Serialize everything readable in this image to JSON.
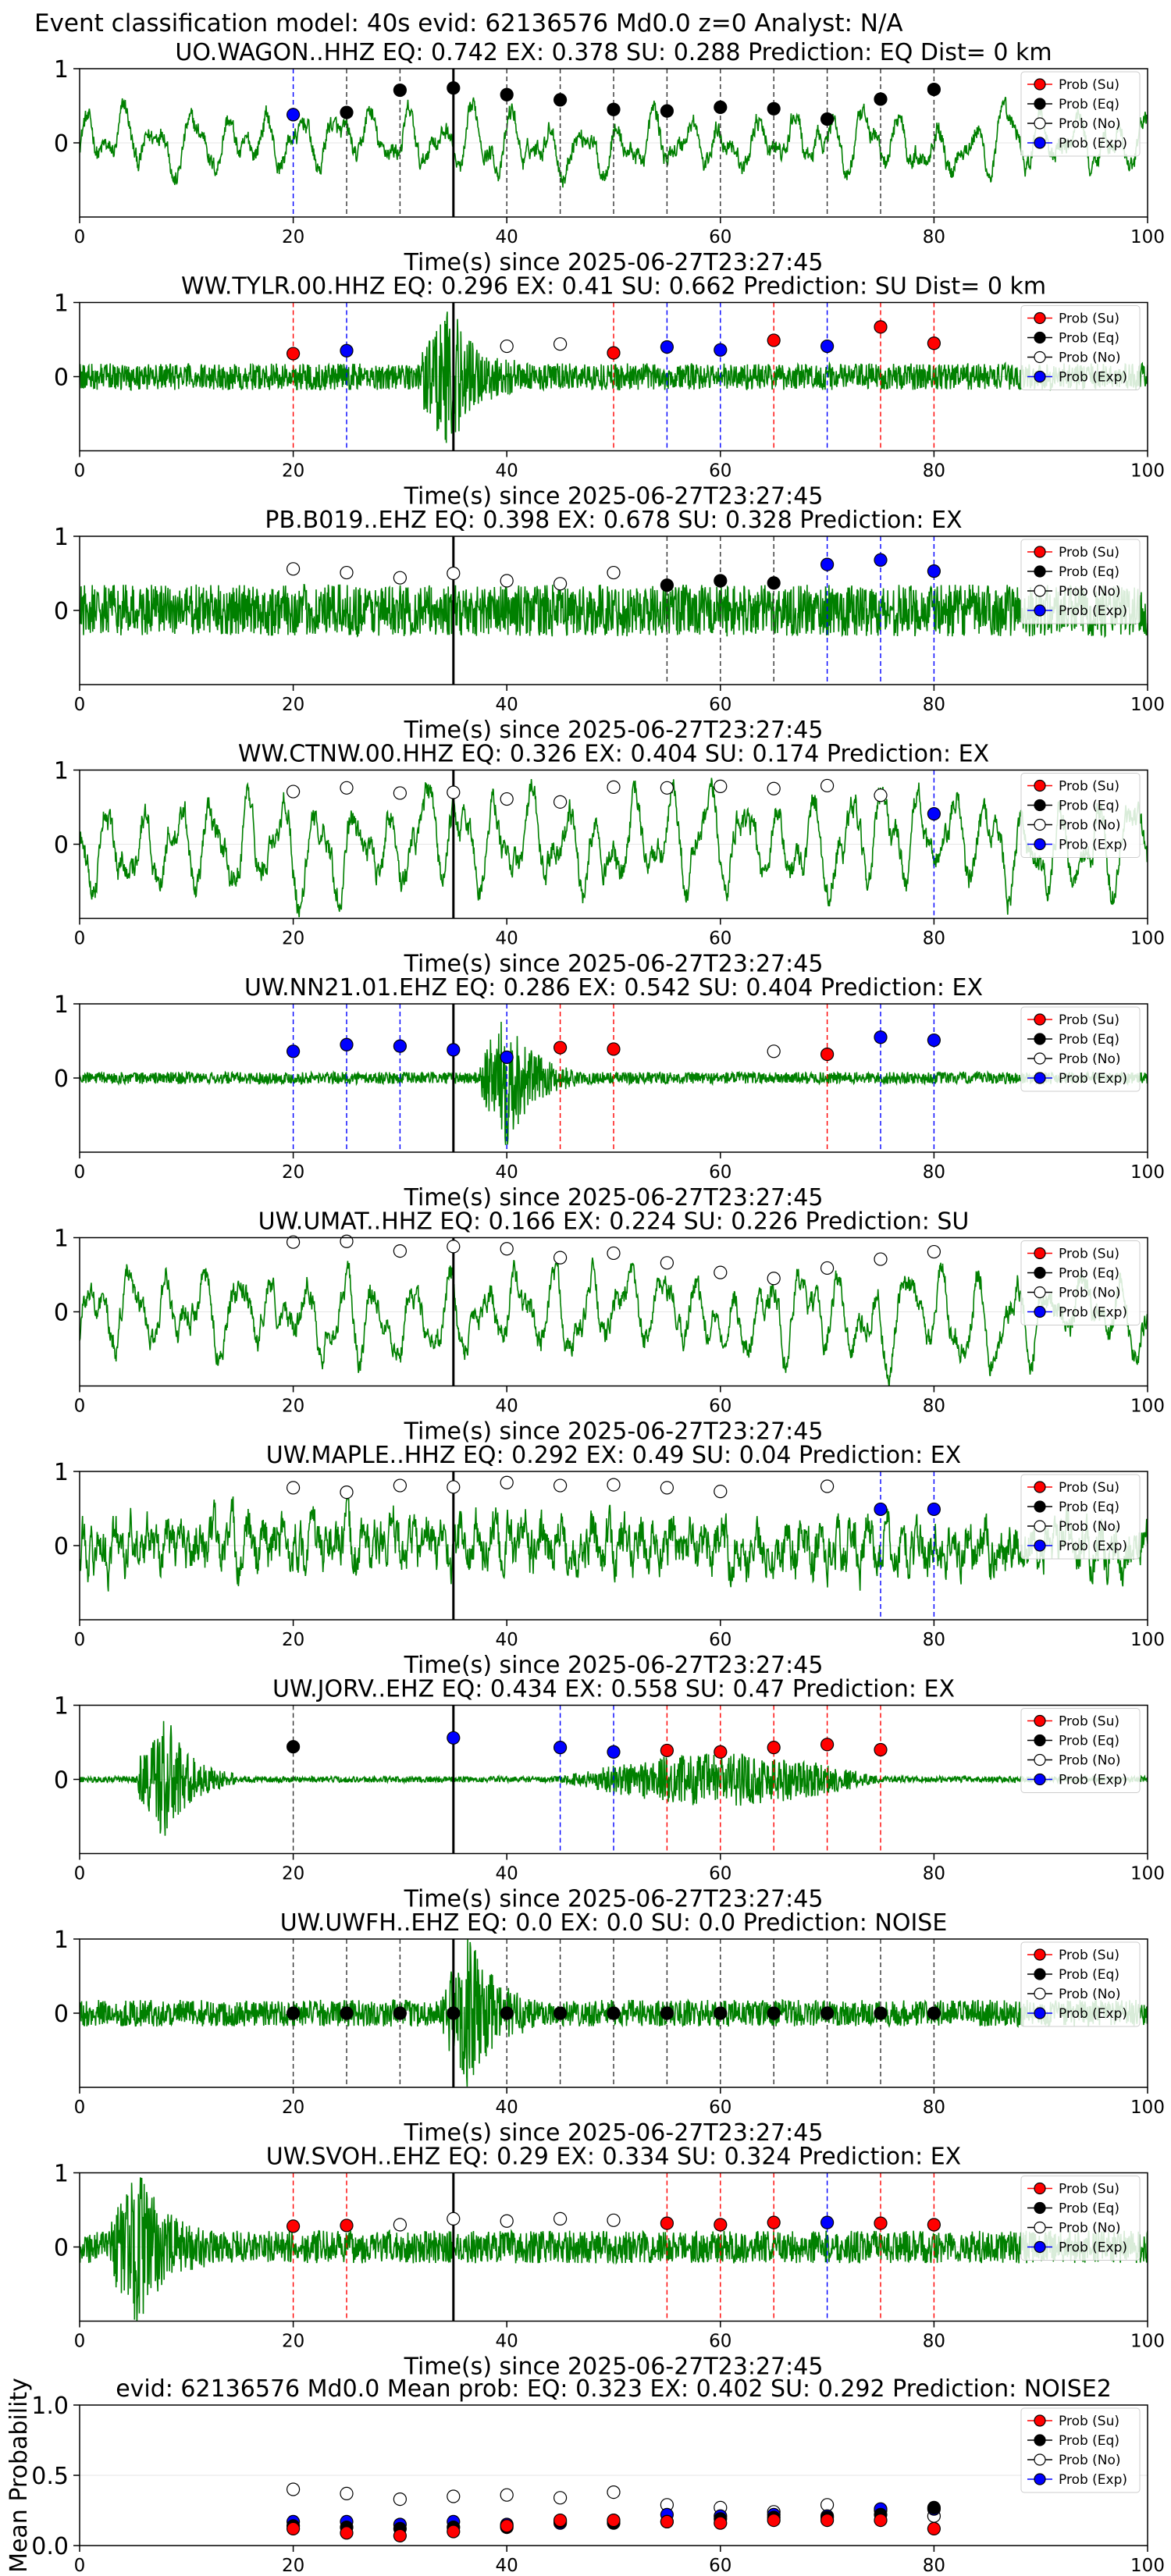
{
  "figure": {
    "suptitle": "Event classification model: 40s evid: 62136576 Md0.0 z=0 Analyst: N/A",
    "xlabel": "Time(s) since 2025-06-27T23:27:45",
    "legend": [
      "Prob (Su)",
      "Prob (Eq)",
      "Prob (No)",
      "Prob (Exp)"
    ],
    "colors": {
      "su": "#ff0000",
      "eq": "#000000",
      "no": "#ffffff",
      "exp": "#0000ff",
      "trace": "#008000"
    }
  },
  "chart_data": [
    {
      "type": "line",
      "title": "UO.WAGON..HHZ   EQ: 0.742  EX: 0.378  SU: 0.288   Prediction: EQ    Dist= 0 km",
      "xlim": [
        0,
        100
      ],
      "ylim": [
        -1,
        1
      ],
      "yticks": [
        0,
        1
      ],
      "xticks": [
        0,
        20,
        40,
        60,
        80,
        100
      ],
      "pick": 35,
      "trace_style": "lowfreq",
      "trace_amp": 0.35,
      "burst_at": null,
      "markers": [
        [
          20,
          0.38,
          "exp"
        ],
        [
          25,
          0.41,
          "eq"
        ],
        [
          30,
          0.71,
          "eq"
        ],
        [
          35,
          0.74,
          "eq"
        ],
        [
          40,
          0.65,
          "eq"
        ],
        [
          45,
          0.58,
          "eq"
        ],
        [
          50,
          0.45,
          "eq"
        ],
        [
          55,
          0.43,
          "eq"
        ],
        [
          60,
          0.48,
          "eq"
        ],
        [
          65,
          0.46,
          "eq"
        ],
        [
          70,
          0.32,
          "eq"
        ],
        [
          75,
          0.59,
          "eq"
        ],
        [
          80,
          0.72,
          "eq"
        ]
      ]
    },
    {
      "type": "line",
      "title": "WW.TYLR.00.HHZ   EQ: 0.296  EX: 0.41  SU: 0.662   Prediction: SU    Dist= 0 km",
      "xlim": [
        0,
        100
      ],
      "ylim": [
        -1,
        1
      ],
      "yticks": [
        0,
        1
      ],
      "xticks": [
        0,
        20,
        40,
        60,
        80,
        100
      ],
      "pick": 35,
      "trace_style": "noise",
      "trace_amp": 0.18,
      "burst_at": 33,
      "markers": [
        [
          20,
          0.31,
          "su"
        ],
        [
          25,
          0.35,
          "exp"
        ],
        [
          40,
          0.41,
          "no"
        ],
        [
          45,
          0.44,
          "no"
        ],
        [
          50,
          0.32,
          "su"
        ],
        [
          55,
          0.4,
          "exp"
        ],
        [
          60,
          0.36,
          "exp"
        ],
        [
          65,
          0.49,
          "su"
        ],
        [
          70,
          0.41,
          "exp"
        ],
        [
          75,
          0.67,
          "su"
        ],
        [
          80,
          0.45,
          "su"
        ]
      ]
    },
    {
      "type": "line",
      "title": "PB.B019..EHZ   EQ: 0.398  EX: 0.678  SU: 0.328   Prediction: EX",
      "xlim": [
        0,
        100
      ],
      "ylim": [
        -1,
        1
      ],
      "yticks": [
        0,
        1
      ],
      "xticks": [
        0,
        20,
        40,
        60,
        80,
        100
      ],
      "pick": 35,
      "trace_style": "noise",
      "trace_amp": 0.35,
      "burst_at": null,
      "markers": [
        [
          20,
          0.56,
          "no"
        ],
        [
          25,
          0.51,
          "no"
        ],
        [
          30,
          0.44,
          "no"
        ],
        [
          35,
          0.5,
          "no"
        ],
        [
          40,
          0.4,
          "no"
        ],
        [
          45,
          0.36,
          "no"
        ],
        [
          50,
          0.51,
          "no"
        ],
        [
          55,
          0.34,
          "eq"
        ],
        [
          60,
          0.4,
          "eq"
        ],
        [
          65,
          0.37,
          "eq"
        ],
        [
          70,
          0.62,
          "exp"
        ],
        [
          75,
          0.68,
          "exp"
        ],
        [
          80,
          0.53,
          "exp"
        ]
      ]
    },
    {
      "type": "line",
      "title": "WW.CTNW.00.HHZ   EQ: 0.326  EX: 0.404  SU: 0.174   Prediction: EX",
      "xlim": [
        0,
        100
      ],
      "ylim": [
        -1,
        1
      ],
      "yticks": [
        0,
        1
      ],
      "xticks": [
        0,
        20,
        40,
        60,
        80,
        100
      ],
      "pick": 35,
      "trace_style": "lowfreq",
      "trace_amp": 0.55,
      "burst_at": null,
      "markers": [
        [
          20,
          0.71,
          "no"
        ],
        [
          25,
          0.76,
          "no"
        ],
        [
          30,
          0.69,
          "no"
        ],
        [
          35,
          0.7,
          "no"
        ],
        [
          40,
          0.61,
          "no"
        ],
        [
          45,
          0.57,
          "no"
        ],
        [
          50,
          0.77,
          "no"
        ],
        [
          55,
          0.76,
          "no"
        ],
        [
          60,
          0.78,
          "no"
        ],
        [
          65,
          0.75,
          "no"
        ],
        [
          70,
          0.79,
          "no"
        ],
        [
          75,
          0.66,
          "no"
        ],
        [
          80,
          0.41,
          "exp"
        ]
      ]
    },
    {
      "type": "line",
      "title": "UW.NN21.01.EHZ   EQ: 0.286  EX: 0.542  SU: 0.404   Prediction: EX",
      "xlim": [
        0,
        100
      ],
      "ylim": [
        -1,
        1
      ],
      "yticks": [
        0,
        1
      ],
      "xticks": [
        0,
        20,
        40,
        60,
        80,
        100
      ],
      "pick": 35,
      "trace_style": "noise",
      "trace_amp": 0.08,
      "burst_at": 38.5,
      "markers": [
        [
          20,
          0.36,
          "exp"
        ],
        [
          25,
          0.45,
          "exp"
        ],
        [
          30,
          0.43,
          "exp"
        ],
        [
          35,
          0.38,
          "exp"
        ],
        [
          40,
          0.28,
          "exp"
        ],
        [
          45,
          0.41,
          "su"
        ],
        [
          50,
          0.39,
          "su"
        ],
        [
          65,
          0.36,
          "no"
        ],
        [
          70,
          0.32,
          "su"
        ],
        [
          75,
          0.55,
          "exp"
        ],
        [
          80,
          0.51,
          "exp"
        ]
      ]
    },
    {
      "type": "line",
      "title": "UW.UMAT..HHZ   EQ: 0.166  EX: 0.224  SU: 0.226   Prediction: SU",
      "xlim": [
        0,
        100
      ],
      "ylim": [
        -1,
        1
      ],
      "yticks": [
        0,
        1
      ],
      "xticks": [
        0,
        20,
        40,
        60,
        80,
        100
      ],
      "pick": 35,
      "trace_style": "lowfreq",
      "trace_amp": 0.5,
      "burst_at": null,
      "markers": [
        [
          20,
          0.94,
          "no"
        ],
        [
          25,
          0.95,
          "no"
        ],
        [
          30,
          0.82,
          "no"
        ],
        [
          35,
          0.88,
          "no"
        ],
        [
          40,
          0.85,
          "no"
        ],
        [
          45,
          0.73,
          "no"
        ],
        [
          50,
          0.79,
          "no"
        ],
        [
          55,
          0.66,
          "no"
        ],
        [
          60,
          0.53,
          "no"
        ],
        [
          65,
          0.45,
          "no"
        ],
        [
          70,
          0.59,
          "no"
        ],
        [
          75,
          0.71,
          "no"
        ],
        [
          80,
          0.81,
          "no"
        ]
      ]
    },
    {
      "type": "line",
      "title": "UW.MAPLE..HHZ   EQ: 0.292  EX: 0.49  SU: 0.04   Prediction: EX",
      "xlim": [
        0,
        100
      ],
      "ylim": [
        -1,
        1
      ],
      "yticks": [
        0,
        1
      ],
      "xticks": [
        0,
        20,
        40,
        60,
        80,
        100
      ],
      "pick": 35,
      "trace_style": "mixed",
      "trace_amp": 0.5,
      "burst_at": null,
      "markers": [
        [
          20,
          0.78,
          "no"
        ],
        [
          25,
          0.72,
          "no"
        ],
        [
          30,
          0.81,
          "no"
        ],
        [
          35,
          0.79,
          "no"
        ],
        [
          40,
          0.85,
          "no"
        ],
        [
          45,
          0.81,
          "no"
        ],
        [
          50,
          0.82,
          "no"
        ],
        [
          55,
          0.78,
          "no"
        ],
        [
          60,
          0.73,
          "no"
        ],
        [
          70,
          0.8,
          "no"
        ],
        [
          75,
          0.49,
          "exp"
        ],
        [
          80,
          0.49,
          "exp"
        ]
      ]
    },
    {
      "type": "line",
      "title": "UW.JORV..EHZ   EQ: 0.434  EX: 0.558  SU: 0.47   Prediction: EX",
      "xlim": [
        0,
        100
      ],
      "ylim": [
        -1,
        1
      ],
      "yticks": [
        0,
        1
      ],
      "xticks": [
        0,
        20,
        40,
        60,
        80,
        100
      ],
      "pick": 35,
      "trace_style": "quiet",
      "trace_amp": 0.04,
      "burst_at": 6.5,
      "markers": [
        [
          20,
          0.44,
          "eq"
        ],
        [
          35,
          0.56,
          "exp"
        ],
        [
          45,
          0.43,
          "exp"
        ],
        [
          50,
          0.37,
          "exp"
        ],
        [
          55,
          0.39,
          "su"
        ],
        [
          60,
          0.37,
          "su"
        ],
        [
          65,
          0.43,
          "su"
        ],
        [
          70,
          0.47,
          "su"
        ],
        [
          75,
          0.4,
          "su"
        ]
      ]
    },
    {
      "type": "line",
      "title": "UW.UWFH..EHZ   EQ: 0.0  EX: 0.0  SU: 0.0   Prediction: NOISE",
      "xlim": [
        0,
        100
      ],
      "ylim": [
        -1,
        1
      ],
      "yticks": [
        0,
        1
      ],
      "xticks": [
        0,
        20,
        40,
        60,
        80,
        100
      ],
      "pick": 35,
      "trace_style": "noise",
      "trace_amp": 0.18,
      "burst_at": 35,
      "markers": [
        [
          20,
          0.0,
          "eq"
        ],
        [
          25,
          0.0,
          "eq"
        ],
        [
          30,
          0.0,
          "eq"
        ],
        [
          35,
          0.0,
          "eq"
        ],
        [
          40,
          0.0,
          "eq"
        ],
        [
          45,
          0.0,
          "eq"
        ],
        [
          50,
          0.0,
          "eq"
        ],
        [
          55,
          0.0,
          "eq"
        ],
        [
          60,
          0.0,
          "eq"
        ],
        [
          65,
          0.0,
          "eq"
        ],
        [
          70,
          0.0,
          "eq"
        ],
        [
          75,
          0.0,
          "eq"
        ],
        [
          80,
          0.0,
          "eq"
        ]
      ]
    },
    {
      "type": "line",
      "title": "UW.SVOH..EHZ   EQ: 0.29  EX: 0.334  SU: 0.324   Prediction: EX",
      "xlim": [
        0,
        100
      ],
      "ylim": [
        -1,
        1
      ],
      "yticks": [
        0,
        1
      ],
      "xticks": [
        0,
        20,
        40,
        60,
        80,
        100
      ],
      "pick": 35,
      "trace_style": "noise",
      "trace_amp": 0.22,
      "burst_at": 4,
      "markers": [
        [
          20,
          0.28,
          "su"
        ],
        [
          25,
          0.29,
          "su"
        ],
        [
          30,
          0.3,
          "no"
        ],
        [
          35,
          0.38,
          "no"
        ],
        [
          40,
          0.35,
          "no"
        ],
        [
          45,
          0.38,
          "no"
        ],
        [
          50,
          0.36,
          "no"
        ],
        [
          55,
          0.32,
          "su"
        ],
        [
          60,
          0.3,
          "su"
        ],
        [
          65,
          0.33,
          "su"
        ],
        [
          70,
          0.33,
          "exp"
        ],
        [
          75,
          0.32,
          "su"
        ],
        [
          80,
          0.3,
          "su"
        ]
      ]
    },
    {
      "type": "scatter",
      "title": "evid: 62136576  Md0.0   Mean prob:   EQ: 0.323  EX: 0.402  SU: 0.292   Prediction: NOISE2",
      "ylabel": "Mean Probability",
      "xlim": [
        0,
        100
      ],
      "ylim": [
        0,
        1
      ],
      "yticks": [
        0.0,
        0.5,
        1.0
      ],
      "xticks": [
        0,
        20,
        40,
        60,
        80,
        100
      ],
      "series": [
        {
          "name": "Prob (No)",
          "key": "no",
          "x": [
            20,
            25,
            30,
            35,
            40,
            45,
            50,
            55,
            60,
            65,
            70,
            75,
            80
          ],
          "values": [
            0.4,
            0.37,
            0.33,
            0.35,
            0.36,
            0.34,
            0.38,
            0.29,
            0.27,
            0.24,
            0.29,
            0.25,
            0.21
          ]
        },
        {
          "name": "Prob (Exp)",
          "key": "exp",
          "x": [
            20,
            25,
            30,
            35,
            40,
            45,
            50,
            55,
            60,
            65,
            70,
            75,
            80
          ],
          "values": [
            0.17,
            0.17,
            0.15,
            0.17,
            0.15,
            0.16,
            0.17,
            0.22,
            0.21,
            0.22,
            0.21,
            0.26,
            0.26
          ]
        },
        {
          "name": "Prob (Eq)",
          "key": "eq",
          "x": [
            20,
            25,
            30,
            35,
            40,
            45,
            50,
            55,
            60,
            65,
            70,
            75,
            80
          ],
          "values": [
            0.14,
            0.13,
            0.12,
            0.13,
            0.13,
            0.17,
            0.16,
            0.17,
            0.19,
            0.2,
            0.2,
            0.22,
            0.27
          ]
        },
        {
          "name": "Prob (Su)",
          "key": "su",
          "x": [
            20,
            25,
            30,
            35,
            40,
            45,
            50,
            55,
            60,
            65,
            70,
            75,
            80
          ],
          "values": [
            0.12,
            0.09,
            0.07,
            0.1,
            0.14,
            0.18,
            0.18,
            0.17,
            0.16,
            0.18,
            0.18,
            0.18,
            0.12
          ]
        }
      ]
    }
  ]
}
